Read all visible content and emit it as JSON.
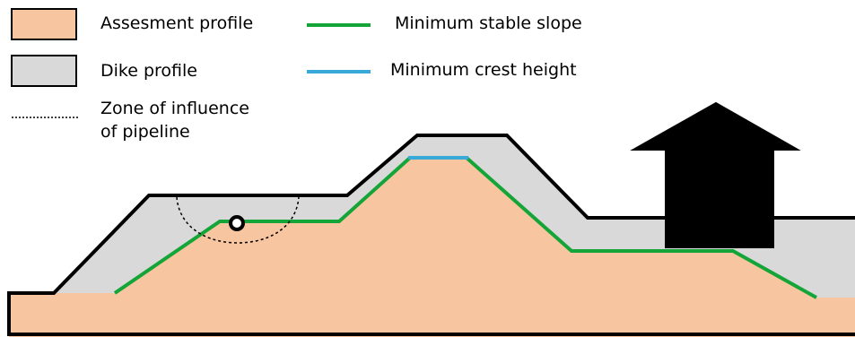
{
  "legend": {
    "assessment_profile": {
      "label": "Assesment profile",
      "color": "#f7c59f"
    },
    "dike_profile": {
      "label": "Dike profile",
      "color": "#d9d9d9"
    },
    "zone_of_influence": {
      "label_line1": "Zone of influence",
      "label_line2": "of pipeline"
    },
    "minimum_stable_slope": {
      "label": "Minimum stable slope",
      "color": "#13a538"
    },
    "minimum_crest_height": {
      "label": "Minimum crest height",
      "color": "#38a9d9"
    }
  },
  "icons": {
    "house": "house-icon",
    "pipeline": "pipeline-icon"
  },
  "colors": {
    "outline": "#000000",
    "background": "#ffffff"
  }
}
